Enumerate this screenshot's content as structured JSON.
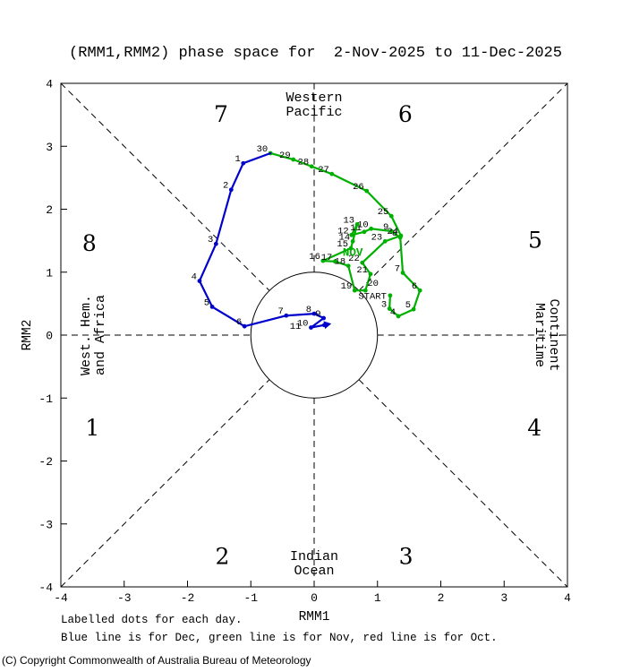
{
  "title": "(RMM1,RMM2) phase space for  2-Nov-2025 to 11-Dec-2025",
  "footnotes": {
    "line1": "Labelled dots for each day.",
    "line2": "Blue line is for Dec, green line is for Nov, red line is for Oct.",
    "copyright": "(C) Copyright Commonwealth of Australia Bureau of Meteorology"
  },
  "chart_data": {
    "type": "line",
    "title": "(RMM1,RMM2) phase space for  2-Nov-2025 to 11-Dec-2025",
    "xlabel": "RMM1",
    "ylabel": "RMM2",
    "xlim": [
      -4,
      4
    ],
    "ylim": [
      -4,
      4
    ],
    "xticks": [
      -4,
      -3,
      -2,
      -1,
      0,
      1,
      2,
      3,
      4
    ],
    "yticks": [
      -4,
      -3,
      -2,
      -1,
      0,
      1,
      2,
      3,
      4
    ],
    "unit_circle_radius": 1,
    "grid": "dashed phase guides through origin, unit circle at center",
    "phase_labels": [
      {
        "label": "1",
        "x": -3.5,
        "y": -1.48
      },
      {
        "label": "2",
        "x": -1.45,
        "y": -3.52
      },
      {
        "label": "3",
        "x": 1.45,
        "y": -3.52
      },
      {
        "label": "4",
        "x": 3.48,
        "y": -1.48
      },
      {
        "label": "5",
        "x": 3.49,
        "y": 1.5
      },
      {
        "label": "6",
        "x": 1.44,
        "y": 3.5
      },
      {
        "label": "7",
        "x": -1.47,
        "y": 3.5
      },
      {
        "label": "8",
        "x": -3.55,
        "y": 1.45
      }
    ],
    "region_labels": {
      "top": [
        "Western",
        "Pacific"
      ],
      "bottom": [
        "Indian",
        "Ocean"
      ],
      "left": [
        "West. Hem.",
        "and Africa"
      ],
      "right": [
        "Maritime",
        "Continent"
      ]
    },
    "series": [
      {
        "name": "November",
        "color": "#00b000",
        "month_label": "NOV",
        "month_label_pos": {
          "x": 0.61,
          "y": 1.26
        },
        "points": [
          {
            "day": "START",
            "x": 1.2,
            "y": 0.63,
            "lx": -4,
            "ly": 4
          },
          {
            "day": "3",
            "x": 1.19,
            "y": 0.42
          },
          {
            "day": "4",
            "x": 1.33,
            "y": 0.3
          },
          {
            "day": "5",
            "x": 1.57,
            "y": 0.41
          },
          {
            "day": "6",
            "x": 1.67,
            "y": 0.71
          },
          {
            "day": "7",
            "x": 1.4,
            "y": 0.99
          },
          {
            "day": "8",
            "x": 1.36,
            "y": 1.55
          },
          {
            "day": "9",
            "x": 1.22,
            "y": 1.65
          },
          {
            "day": "10",
            "x": 0.9,
            "y": 1.69
          },
          {
            "day": "11",
            "x": 0.79,
            "y": 1.64
          },
          {
            "day": "12",
            "x": 0.59,
            "y": 1.59
          },
          {
            "day": "13",
            "x": 0.68,
            "y": 1.76
          },
          {
            "day": "14",
            "x": 0.61,
            "y": 1.49
          },
          {
            "day": "15",
            "x": 0.58,
            "y": 1.38
          },
          {
            "day": "16",
            "x": 0.14,
            "y": 1.18
          },
          {
            "day": "17",
            "x": 0.33,
            "y": 1.17
          },
          {
            "day": "18",
            "x": 0.54,
            "y": 1.1
          },
          {
            "day": "19",
            "x": 0.64,
            "y": 0.71
          },
          {
            "day": "20",
            "x": 0.81,
            "y": 0.71,
            "anchor": "start",
            "lx": 2,
            "ly": -5
          },
          {
            "day": "21",
            "x": 0.89,
            "y": 0.97
          },
          {
            "day": "22",
            "x": 0.76,
            "y": 1.15
          },
          {
            "day": "23",
            "x": 1.12,
            "y": 1.49
          },
          {
            "day": "24",
            "x": 1.37,
            "y": 1.58
          },
          {
            "day": "25",
            "x": 1.22,
            "y": 1.89
          },
          {
            "day": "26",
            "x": 0.83,
            "y": 2.29
          },
          {
            "day": "27",
            "x": 0.28,
            "y": 2.56
          },
          {
            "day": "28",
            "x": -0.04,
            "y": 2.68
          },
          {
            "day": "29",
            "x": -0.33,
            "y": 2.79
          },
          {
            "day": "30",
            "x": -0.69,
            "y": 2.89
          }
        ]
      },
      {
        "name": "December",
        "color": "#0000cc",
        "month_label": "",
        "arrow_at_end": true,
        "points": [
          {
            "day": "1",
            "x": -1.12,
            "y": 2.73
          },
          {
            "day": "2",
            "x": -1.31,
            "y": 2.31
          },
          {
            "day": "3",
            "x": -1.55,
            "y": 1.45
          },
          {
            "day": "4",
            "x": -1.81,
            "y": 0.86
          },
          {
            "day": "5",
            "x": -1.61,
            "y": 0.45
          },
          {
            "day": "6",
            "x": -1.1,
            "y": 0.14
          },
          {
            "day": "7",
            "x": -0.44,
            "y": 0.31
          },
          {
            "day": "8",
            "x": 0.0,
            "y": 0.34
          },
          {
            "day": "9",
            "x": 0.15,
            "y": 0.27
          },
          {
            "day": "10",
            "x": -0.05,
            "y": 0.12
          },
          {
            "day": "11",
            "x": 0.16,
            "y": 0.16,
            "lx": -26,
            "ly": 4
          }
        ]
      }
    ]
  }
}
